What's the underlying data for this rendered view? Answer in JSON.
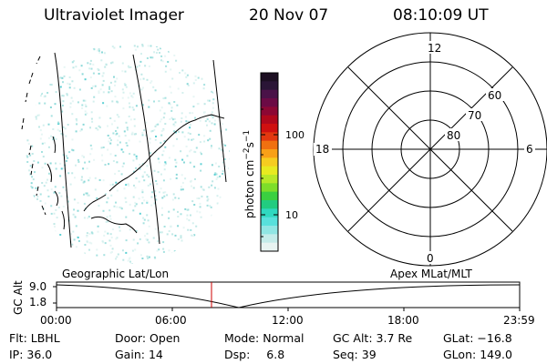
{
  "header": {
    "instrument": "Ultraviolet Imager",
    "date": "20 Nov 07",
    "time": "08:10:09 UT"
  },
  "colorbar": {
    "unit_label": "photon cm-2s-1",
    "tick_labels": [
      "100",
      "10"
    ],
    "colors": [
      "#1c0f22",
      "#2a1536",
      "#4a1248",
      "#6b0a45",
      "#8c0734",
      "#b0081c",
      "#d01010",
      "#e23810",
      "#f07010",
      "#f8a018",
      "#f6cc20",
      "#e8ea20",
      "#b8e828",
      "#7ede2a",
      "#3ad040",
      "#22cc80",
      "#30d8c0",
      "#58e0dc",
      "#90e6e4",
      "#c4ecea",
      "#e8f4f2"
    ]
  },
  "polar_plot": {
    "mlt_labels": [
      "12",
      "18",
      "6",
      "0"
    ],
    "lat_labels": [
      "60",
      "70",
      "80"
    ]
  },
  "timeline": {
    "left_label": "Geographic Lat/Lon",
    "right_label": "Apex MLat/MLT",
    "axis_label": "GC Alt",
    "y_ticks": [
      "9.0",
      "1.8"
    ],
    "time_ticks": [
      "00:00",
      "06:00",
      "12:00",
      "18:00",
      "23:59"
    ],
    "marker_color": "#cc0000"
  },
  "footer": {
    "row1": [
      {
        "label": "Flt:",
        "value": "LBHL"
      },
      {
        "label": "Door:",
        "value": "Open"
      },
      {
        "label": "Mode:",
        "value": "Normal"
      },
      {
        "label": "GC Alt:",
        "value": "3.7 Re"
      },
      {
        "label": "GLat:",
        "value": "−16.8"
      }
    ],
    "row2": [
      {
        "label": "IP:",
        "value": "36.0"
      },
      {
        "label": "Gain:",
        "value": "14"
      },
      {
        "label": "Dsp:",
        "value": "6.8"
      },
      {
        "label": "Seq:",
        "value": "39"
      },
      {
        "label": "GLon:",
        "value": "149.0"
      }
    ]
  }
}
